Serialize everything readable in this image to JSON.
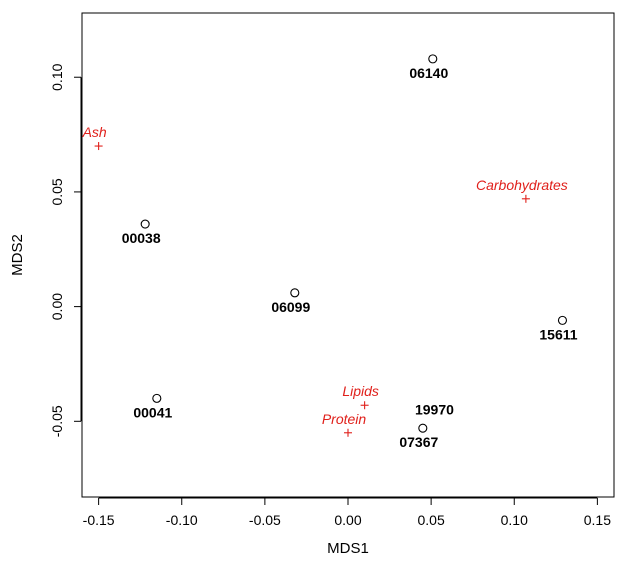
{
  "chart_data": {
    "type": "scatter",
    "xlabel": "MDS1",
    "ylabel": "MDS2",
    "xlim": [
      -0.16,
      0.16
    ],
    "ylim": [
      -0.083,
      0.128
    ],
    "x_ticks": [
      -0.15,
      -0.1,
      -0.05,
      0.0,
      0.05,
      0.1,
      0.15
    ],
    "x_tick_labels": [
      "-0.15",
      "-0.10",
      "-0.05",
      "0.00",
      "0.05",
      "0.10",
      "0.15"
    ],
    "y_ticks": [
      -0.05,
      0.0,
      0.05,
      0.1
    ],
    "y_tick_labels": [
      "-0.05",
      "0.00",
      "0.05",
      "0.10"
    ],
    "grid": false,
    "series": [
      {
        "marker": "circle",
        "color": "#000000",
        "points": [
          {
            "label": "06140",
            "x": 0.051,
            "y": 0.108
          },
          {
            "label": "00038",
            "x": -0.122,
            "y": 0.036
          },
          {
            "label": "06099",
            "x": -0.032,
            "y": 0.006
          },
          {
            "label": "15611",
            "x": 0.129,
            "y": -0.006
          },
          {
            "label": "00041",
            "x": -0.115,
            "y": -0.04
          },
          {
            "label": "07367",
            "x": 0.045,
            "y": -0.053
          }
        ]
      },
      {
        "marker": "plus",
        "color": "#e0201b",
        "points": [
          {
            "label": "Ash",
            "x": -0.15,
            "y": 0.07
          },
          {
            "label": "Carbohydrates",
            "x": 0.107,
            "y": 0.047
          },
          {
            "label": "Lipids",
            "x": 0.01,
            "y": -0.043
          },
          {
            "label": "Protein",
            "x": 0.0,
            "y": -0.055
          }
        ]
      }
    ],
    "annotations": [
      {
        "text": "19970",
        "x": 0.052,
        "y": -0.047
      }
    ]
  }
}
